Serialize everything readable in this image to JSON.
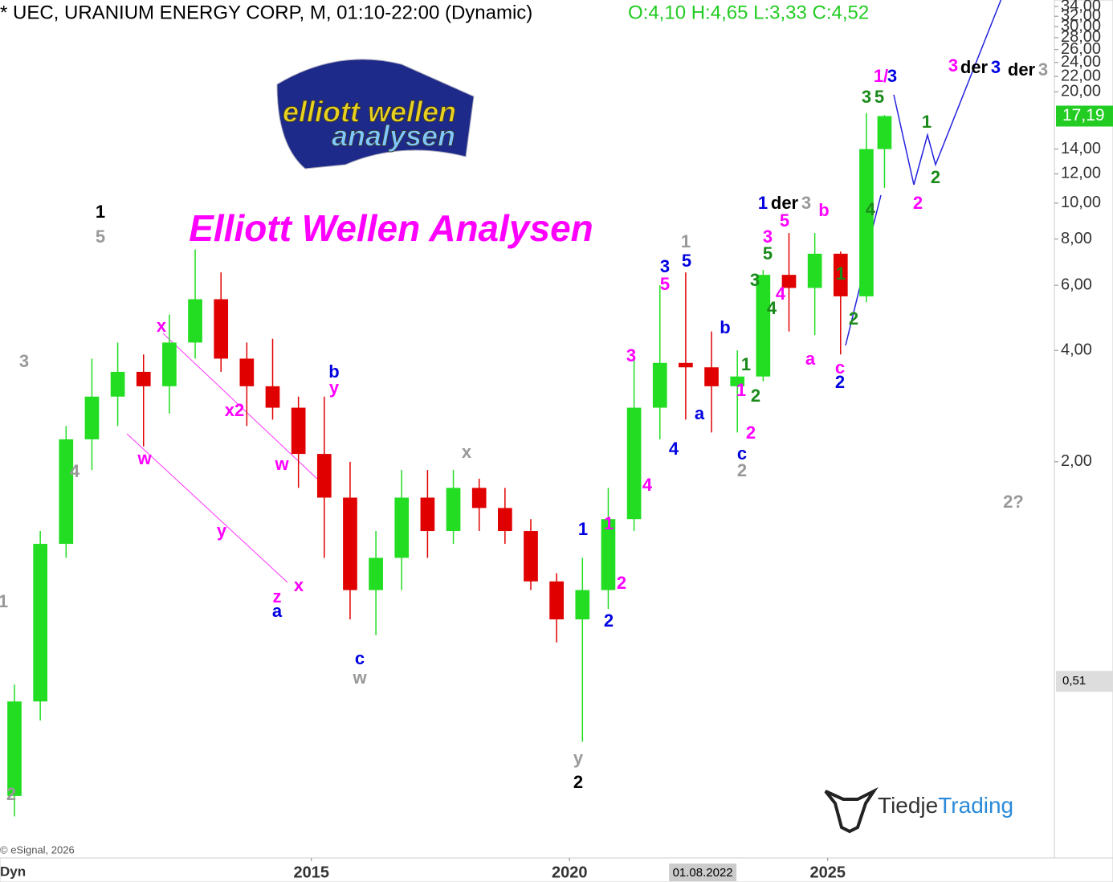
{
  "chart_data": {
    "type": "candlestick",
    "title": "* UEC, URANIUM ENERGY CORP, M, 01:10-22:00 (Dynamic)",
    "ohlc_header": "O:4,10 H:4,65 L:3,33 C:4,52",
    "watermark": "Elliott Wellen Analysen",
    "logo_top": "elliott wellen",
    "logo_bottom": "analysen",
    "brand_a": "Tiedje",
    "brand_b": "Trading",
    "copyright": "© eSignal, 2026",
    "mode_label": "Dyn",
    "log_scale": true,
    "up_color": "#22dd22",
    "down_color": "#e00000",
    "x": [
      2009.25,
      2009.75,
      2010.25,
      2010.75,
      2011.25,
      2011.75,
      2012.25,
      2012.75,
      2013.25,
      2013.75,
      2014.25,
      2014.75,
      2015.25,
      2015.75,
      2016.25,
      2016.75,
      2017.25,
      2017.75,
      2018.25,
      2018.75,
      2019.25,
      2019.75,
      2020.25,
      2020.75,
      2021.25,
      2021.75,
      2022.25,
      2022.75,
      2023.25,
      2023.75,
      2024.25,
      2024.75,
      2025.25,
      2025.75,
      2026.1
    ],
    "open": [
      0.25,
      0.45,
      1.2,
      2.3,
      3.0,
      3.5,
      3.2,
      4.2,
      5.5,
      3.8,
      3.2,
      2.8,
      2.1,
      1.6,
      0.9,
      1.1,
      1.6,
      1.3,
      1.7,
      1.5,
      1.3,
      0.95,
      0.75,
      0.9,
      1.4,
      2.8,
      3.7,
      3.6,
      3.2,
      3.4,
      6.4,
      5.9,
      7.3,
      5.6,
      14
    ],
    "high": [
      0.5,
      1.3,
      2.5,
      3.8,
      4.2,
      3.9,
      5,
      7.5,
      6.5,
      4.2,
      4.3,
      3.0,
      3.0,
      2.0,
      1.3,
      1.9,
      1.9,
      1.9,
      1.8,
      1.7,
      1.4,
      1.0,
      1.1,
      1.7,
      3.8,
      6.0,
      6.5,
      4.5,
      4.0,
      6.6,
      8.3,
      8.3,
      7.4,
      17.5,
      17.3
    ],
    "low": [
      0.22,
      0.4,
      1.1,
      1.9,
      2.5,
      2.2,
      2.7,
      3.8,
      3.5,
      2.5,
      2.6,
      1.7,
      1.1,
      0.75,
      0.68,
      0.9,
      1.1,
      1.2,
      1.3,
      1.2,
      0.9,
      0.65,
      0.35,
      0.8,
      1.3,
      2.3,
      2.6,
      2.4,
      2.4,
      3.3,
      4.5,
      4.4,
      3.9,
      5.4,
      11
    ],
    "close": [
      0.45,
      1.2,
      2.3,
      3.0,
      3.5,
      3.2,
      4.2,
      5.5,
      3.8,
      3.2,
      2.8,
      2.1,
      1.6,
      0.9,
      1.1,
      1.6,
      1.3,
      1.7,
      1.5,
      1.3,
      0.95,
      0.75,
      0.9,
      1.4,
      2.8,
      3.7,
      3.6,
      3.2,
      3.4,
      6.4,
      5.9,
      7.3,
      5.6,
      14,
      17.19
    ],
    "xlim": [
      2008.97,
      2029.39
    ],
    "xticks": [
      2015,
      2020,
      2025
    ],
    "x_marker": {
      "value": 2022.58,
      "label": "01.08.2022"
    },
    "ylim": [
      0.17,
      35.4
    ],
    "yticks": [
      {
        "value": 34,
        "label": "34,00"
      },
      {
        "value": 32,
        "label": "32,00"
      },
      {
        "value": 30,
        "label": "30,00"
      },
      {
        "value": 28,
        "label": "28,00"
      },
      {
        "value": 26,
        "label": "26,00"
      },
      {
        "value": 24,
        "label": "24,00"
      },
      {
        "value": 22,
        "label": "22,00"
      },
      {
        "value": 20,
        "label": "20,00"
      },
      {
        "value": 14,
        "label": "14,00"
      },
      {
        "value": 12,
        "label": "12,00"
      },
      {
        "value": 10,
        "label": "10,00"
      },
      {
        "value": 8,
        "label": "8,00"
      },
      {
        "value": 6,
        "label": "6,00"
      },
      {
        "value": 4,
        "label": "4,00"
      },
      {
        "value": 2,
        "label": "2,00"
      }
    ],
    "price_markers": [
      {
        "value": 17.19,
        "label": "17,19",
        "color": "#22cc22"
      },
      {
        "value": 0.51,
        "label": "0,51",
        "color": "#dddddd"
      }
    ],
    "wave_labels": [
      {
        "text": "1",
        "color": "#000000"
      },
      {
        "text": "5",
        "color": "#999999"
      },
      {
        "text": "3",
        "color": "#999999"
      },
      {
        "text": "4",
        "color": "#999999"
      },
      {
        "text": "1",
        "color": "#999999"
      },
      {
        "text": "2",
        "color": "#999999"
      },
      {
        "text": "x",
        "color": "#ff00ff"
      },
      {
        "text": "w",
        "color": "#ff00ff"
      },
      {
        "text": "x2",
        "color": "#ff00ff"
      },
      {
        "text": "y",
        "color": "#ff00ff"
      },
      {
        "text": "w",
        "color": "#ff00ff"
      },
      {
        "text": "z",
        "color": "#ff00ff"
      },
      {
        "text": "a",
        "color": "#0000e0"
      },
      {
        "text": "x",
        "color": "#ff00ff"
      },
      {
        "text": "b",
        "color": "#0000e0"
      },
      {
        "text": "y",
        "color": "#ff00ff"
      },
      {
        "text": "c",
        "color": "#0000e0"
      },
      {
        "text": "w",
        "color": "#999999"
      },
      {
        "text": "x",
        "color": "#999999"
      },
      {
        "text": "y",
        "color": "#999999"
      },
      {
        "text": "2",
        "color": "#000000"
      },
      {
        "text": "1",
        "color": "#0000e0"
      },
      {
        "text": "2",
        "color": "#0000e0"
      },
      {
        "text": "1",
        "color": "#ff00ff"
      },
      {
        "text": "2",
        "color": "#ff00ff"
      },
      {
        "text": "3",
        "color": "#ff00ff"
      },
      {
        "text": "4",
        "color": "#ff00ff"
      },
      {
        "text": "3",
        "color": "#0000e0"
      },
      {
        "text": "5",
        "color": "#ff00ff"
      },
      {
        "text": "1",
        "color": "#999999"
      },
      {
        "text": "5",
        "color": "#0000e0"
      },
      {
        "text": "4",
        "color": "#0000e0"
      },
      {
        "text": "a",
        "color": "#0000e0"
      },
      {
        "text": "b",
        "color": "#0000e0"
      },
      {
        "text": "c",
        "color": "#0000e0"
      },
      {
        "text": "2",
        "color": "#999999"
      },
      {
        "text": "1",
        "color": "#1a8a1a"
      },
      {
        "text": "1",
        "color": "#ff00ff"
      },
      {
        "text": "2",
        "color": "#1a8a1a"
      },
      {
        "text": "2",
        "color": "#ff00ff"
      },
      {
        "text": "3",
        "color": "#1a8a1a"
      },
      {
        "text": "4",
        "color": "#1a8a1a"
      },
      {
        "text": "4",
        "color": "#ff00ff"
      },
      {
        "text": "5",
        "color": "#1a8a1a"
      },
      {
        "text": "3",
        "color": "#ff00ff"
      },
      {
        "text": "5",
        "color": "#ff00ff"
      },
      {
        "text": "1",
        "color": "#0000e0"
      },
      {
        "text": "der",
        "color": "#000000"
      },
      {
        "text": "3",
        "color": "#999999"
      },
      {
        "text": "b",
        "color": "#ff00ff"
      },
      {
        "text": "a",
        "color": "#ff00ff"
      },
      {
        "text": "c",
        "color": "#ff00ff"
      },
      {
        "text": "2",
        "color": "#0000e0"
      },
      {
        "text": "1",
        "color": "#1a8a1a"
      },
      {
        "text": "2",
        "color": "#1a8a1a"
      },
      {
        "text": "4",
        "color": "#1a8a1a"
      },
      {
        "text": "3",
        "color": "#1a8a1a"
      },
      {
        "text": "5",
        "color": "#1a8a1a"
      },
      {
        "text": "1/",
        "color": "#ff00ff"
      },
      {
        "text": "3",
        "color": "#0000e0"
      },
      {
        "text": "1",
        "color": "#1a8a1a"
      },
      {
        "text": "2",
        "color": "#1a8a1a"
      },
      {
        "text": "2",
        "color": "#ff00ff"
      },
      {
        "text": "3",
        "color": "#ff00ff"
      },
      {
        "text": "der",
        "color": "#000000"
      },
      {
        "text": "3",
        "color": "#0000e0"
      },
      {
        "text": "der",
        "color": "#000000"
      },
      {
        "text": "3",
        "color": "#999999"
      },
      {
        "text": "2?",
        "color": "#999999"
      }
    ]
  }
}
